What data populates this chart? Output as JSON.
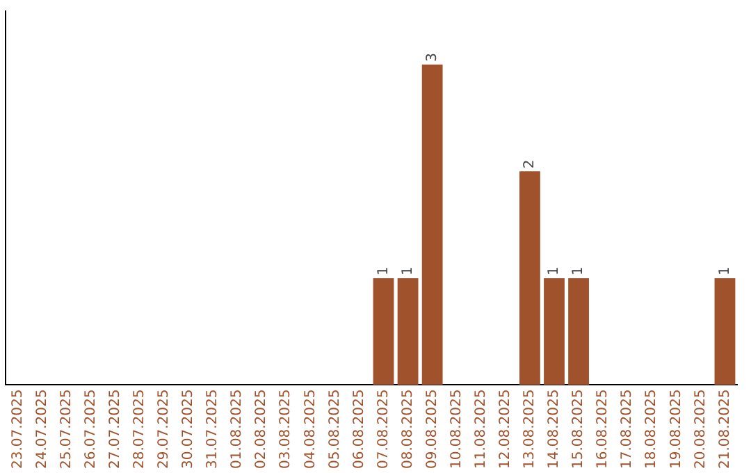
{
  "chart_data": {
    "type": "bar",
    "categories": [
      "23.07.2025",
      "24.07.2025",
      "25.07.2025",
      "26.07.2025",
      "27.07.2025",
      "28.07.2025",
      "29.07.2025",
      "30.07.2025",
      "31.07.2025",
      "01.08.2025",
      "02.08.2025",
      "03.08.2025",
      "04.08.2025",
      "05.08.2025",
      "06.08.2025",
      "07.08.2025",
      "08.08.2025",
      "09.08.2025",
      "10.08.2025",
      "11.08.2025",
      "12.08.2025",
      "13.08.2025",
      "14.08.2025",
      "15.08.2025",
      "16.08.2025",
      "17.08.2025",
      "18.08.2025",
      "19.08.2025",
      "20.08.2025",
      "21.08.2025"
    ],
    "values": [
      null,
      null,
      null,
      null,
      null,
      null,
      null,
      null,
      null,
      null,
      null,
      null,
      null,
      null,
      null,
      1,
      1,
      3,
      null,
      null,
      null,
      2,
      1,
      1,
      null,
      null,
      null,
      null,
      null,
      1
    ],
    "value_labels": [
      null,
      null,
      null,
      null,
      null,
      null,
      null,
      null,
      null,
      null,
      null,
      null,
      null,
      null,
      null,
      "1",
      "1",
      "3",
      null,
      null,
      null,
      "2",
      "1",
      "1",
      null,
      null,
      null,
      null,
      null,
      "1"
    ],
    "color": "#a0522d",
    "grid": false,
    "legend": false,
    "tick_labels": "x"
  }
}
